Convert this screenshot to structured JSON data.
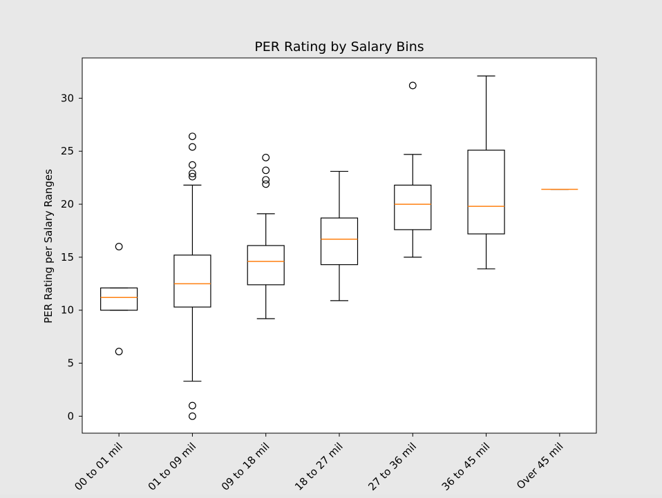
{
  "chart_data": {
    "type": "box",
    "title": "PER Rating by Salary Bins",
    "xlabel": "",
    "ylabel": "PER Rating per Salary Ranges",
    "ylim": [
      -1.6,
      33.8
    ],
    "yticks": [
      0,
      5,
      10,
      15,
      20,
      25,
      30
    ],
    "grid": false,
    "categories": [
      "00 to 01 mil",
      "01 to 09 mil",
      "09 to 18 mil",
      "18 to 27 mil",
      "27 to 36 mil",
      "36 to 45 mil",
      "Over 45 mil"
    ],
    "boxes": [
      {
        "whisker_low": 10.0,
        "q1": 10.0,
        "median": 11.2,
        "q3": 12.1,
        "whisker_high": 12.1,
        "outliers": [
          16.0,
          6.1
        ]
      },
      {
        "whisker_low": 3.3,
        "q1": 10.3,
        "median": 12.5,
        "q3": 15.2,
        "whisker_high": 21.8,
        "outliers": [
          26.4,
          25.4,
          23.7,
          22.9,
          22.6,
          1.0,
          0.0
        ]
      },
      {
        "whisker_low": 9.2,
        "q1": 12.4,
        "median": 14.6,
        "q3": 16.1,
        "whisker_high": 19.1,
        "outliers": [
          24.4,
          23.2,
          22.3,
          21.9
        ]
      },
      {
        "whisker_low": 10.9,
        "q1": 14.3,
        "median": 16.7,
        "q3": 18.7,
        "whisker_high": 23.1,
        "outliers": []
      },
      {
        "whisker_low": 15.0,
        "q1": 17.6,
        "median": 20.0,
        "q3": 21.8,
        "whisker_high": 24.7,
        "outliers": [
          31.2
        ]
      },
      {
        "whisker_low": 13.9,
        "q1": 17.2,
        "median": 19.8,
        "q3": 25.1,
        "whisker_high": 32.1,
        "outliers": []
      },
      {
        "whisker_low": 21.4,
        "q1": 21.4,
        "median": 21.4,
        "q3": 21.4,
        "whisker_high": 21.4,
        "outliers": []
      }
    ],
    "colors": {
      "box": "#000000",
      "median": "#ff7f0e",
      "axes_bg": "#ffffff",
      "figure_bg": "#e8e8e8"
    }
  }
}
